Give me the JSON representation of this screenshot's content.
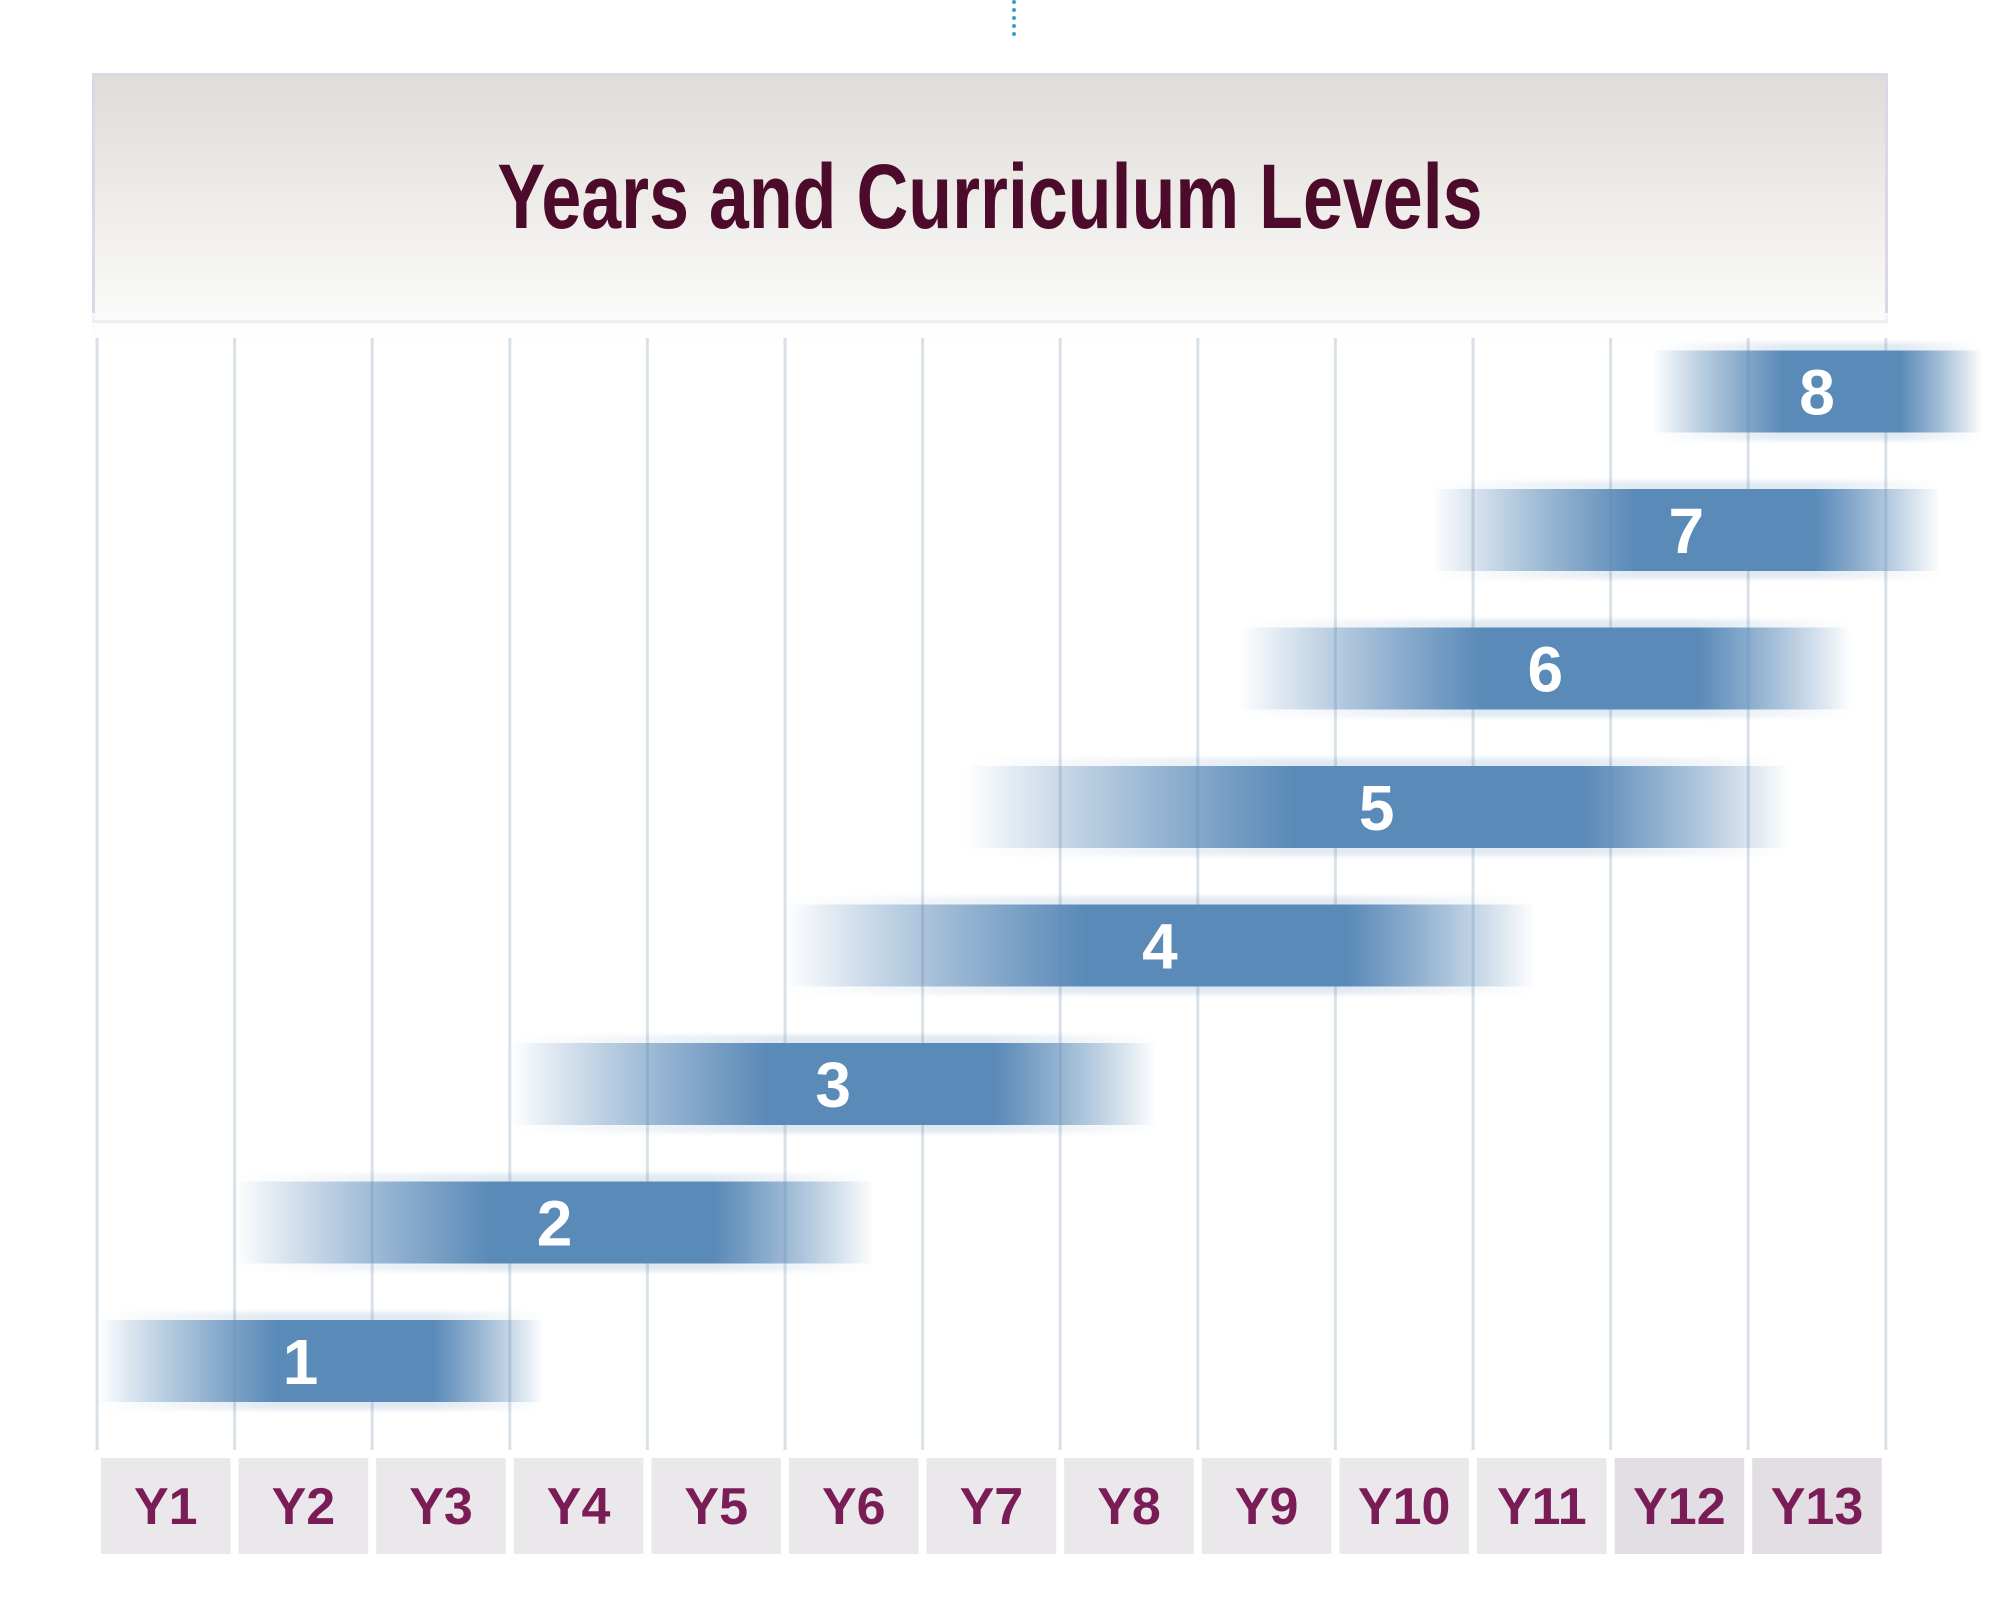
{
  "title": "Years and Curriculum Levels",
  "chart_data": {
    "type": "diagram",
    "title": "Years and Curriculum Levels",
    "categories": [
      "Y1",
      "Y2",
      "Y3",
      "Y4",
      "Y5",
      "Y6",
      "Y7",
      "Y8",
      "Y9",
      "Y10",
      "Y11",
      "Y12",
      "Y13"
    ],
    "levels": [
      {
        "label": "1",
        "start": 0.0,
        "end": 3.25
      },
      {
        "label": "2",
        "start": 1.0,
        "end": 5.65
      },
      {
        "label": "3",
        "start": 3.0,
        "end": 7.7
      },
      {
        "label": "4",
        "start": 5.0,
        "end": 10.45
      },
      {
        "label": "5",
        "start": 6.3,
        "end": 12.3
      },
      {
        "label": "6",
        "start": 8.3,
        "end": 12.75
      },
      {
        "label": "7",
        "start": 9.7,
        "end": 13.4
      },
      {
        "label": "8",
        "start": 11.3,
        "end": 13.7
      }
    ]
  },
  "colors": {
    "bar": "#5a8ab8",
    "title": "#4d0b2b",
    "year_label": "#7a1c56",
    "year_cell": "#ebe8ec",
    "gridline": "#d8e0e8"
  }
}
